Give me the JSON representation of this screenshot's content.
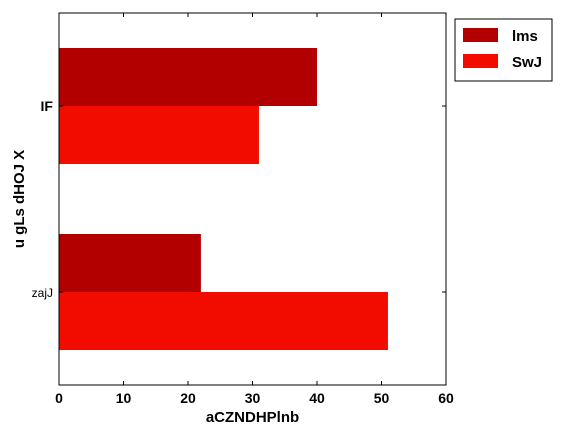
{
  "chart_data": {
    "type": "bar",
    "orientation": "horizontal",
    "title": "",
    "xlabel": "aCZNDHPlnb",
    "ylabel": "u gLs  dHOJ X",
    "xlim": [
      0,
      60
    ],
    "xticks": [
      0,
      10,
      20,
      30,
      40,
      50,
      60
    ],
    "categories": [
      "IF",
      "zajJ"
    ],
    "series": [
      {
        "name": "lms",
        "color": "#b20000",
        "values": [
          40,
          22
        ]
      },
      {
        "name": "SwJ",
        "color": "#f20c00",
        "values": [
          31,
          51
        ]
      }
    ],
    "legend_position": "top-right",
    "grid": false
  }
}
